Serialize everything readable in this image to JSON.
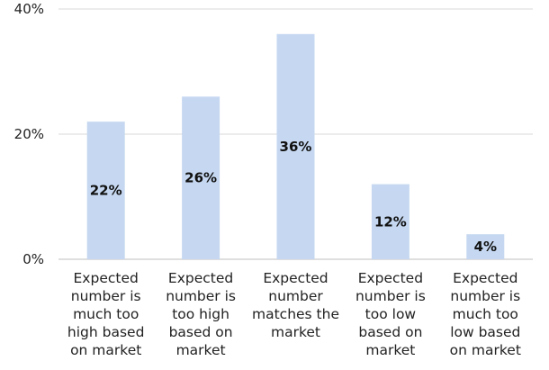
{
  "chart_data": {
    "type": "bar",
    "title": "",
    "xlabel": "",
    "ylabel": "",
    "categories": [
      "Expected\nnumber is\nmuch too\nhigh based\non market",
      "Expected\nnumber is\ntoo high\nbased on\nmarket",
      "Expected\nnumber\nmatches the\nmarket",
      "Expected\nnumber is\ntoo low\nbased on\nmarket",
      "Expected\nnumber is\nmuch too\nlow based\non market"
    ],
    "values": [
      22,
      26,
      36,
      12,
      4
    ],
    "data_labels": [
      "22%",
      "26%",
      "36%",
      "12%",
      "4%"
    ],
    "ylim": [
      0,
      40
    ],
    "y_ticks": [
      0,
      20,
      40
    ],
    "y_tick_labels": [
      "0%",
      "20%",
      "40%"
    ],
    "grid": true,
    "bar_color": "#c6d8f1",
    "grid_color": "#d9d9d9"
  }
}
